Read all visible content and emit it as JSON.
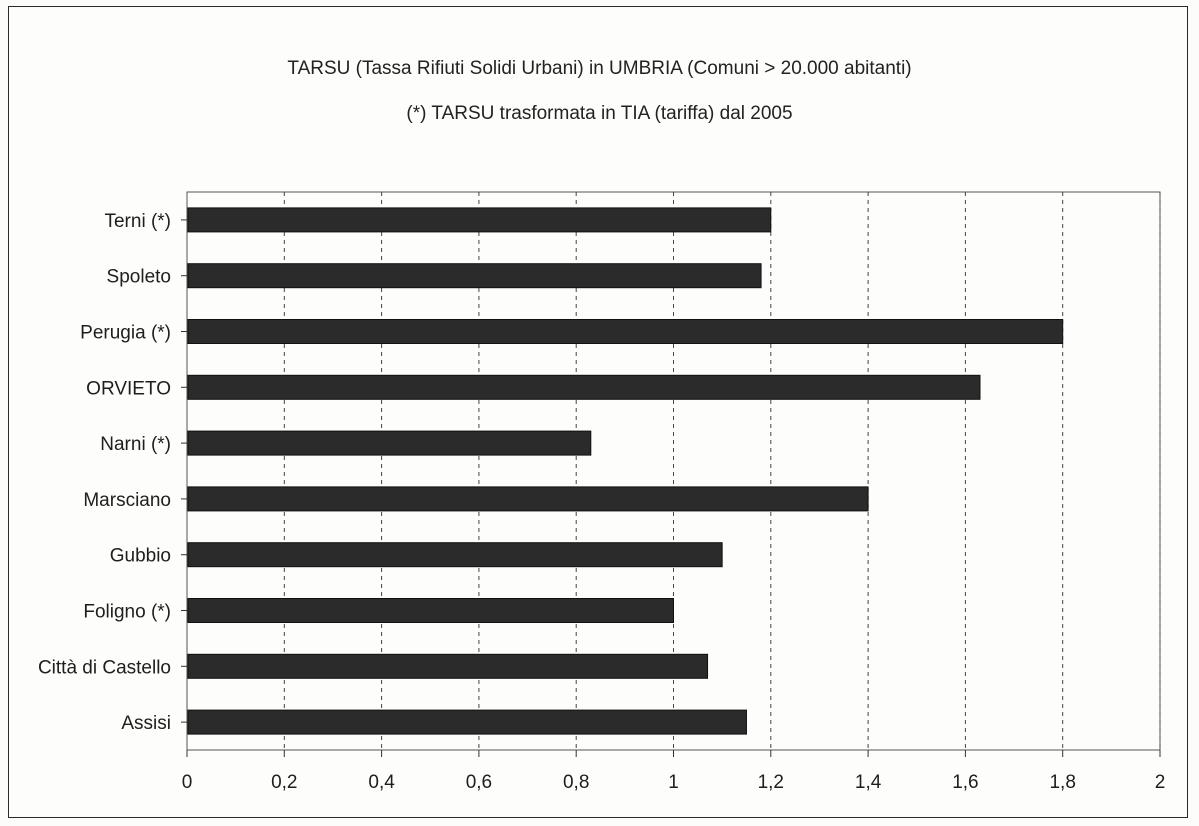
{
  "chart_data": {
    "type": "bar",
    "orientation": "horizontal",
    "title": "TARSU (Tassa Rifiuti Solidi Urbani) in UMBRIA (Comuni > 20.000 abitanti)",
    "subtitle": "(*) TARSU trasformata in TIA (tariffa) dal 2005",
    "categories": [
      "Terni (*)",
      "Spoleto",
      "Perugia (*)",
      "ORVIETO",
      "Narni (*)",
      "Marsciano",
      "Gubbio",
      "Foligno (*)",
      "Città di Castello",
      "Assisi"
    ],
    "values": [
      1.2,
      1.18,
      1.8,
      1.63,
      0.83,
      1.4,
      1.1,
      1.0,
      1.07,
      1.15
    ],
    "xlim": [
      0,
      2
    ],
    "xticks": [
      "0",
      "0,2",
      "0,4",
      "0,6",
      "0,8",
      "1",
      "1,2",
      "1,4",
      "1,6",
      "1,8",
      "2"
    ],
    "grid": "vertical-dashed",
    "legend": "none",
    "bar_color": "#2b2b2b"
  }
}
